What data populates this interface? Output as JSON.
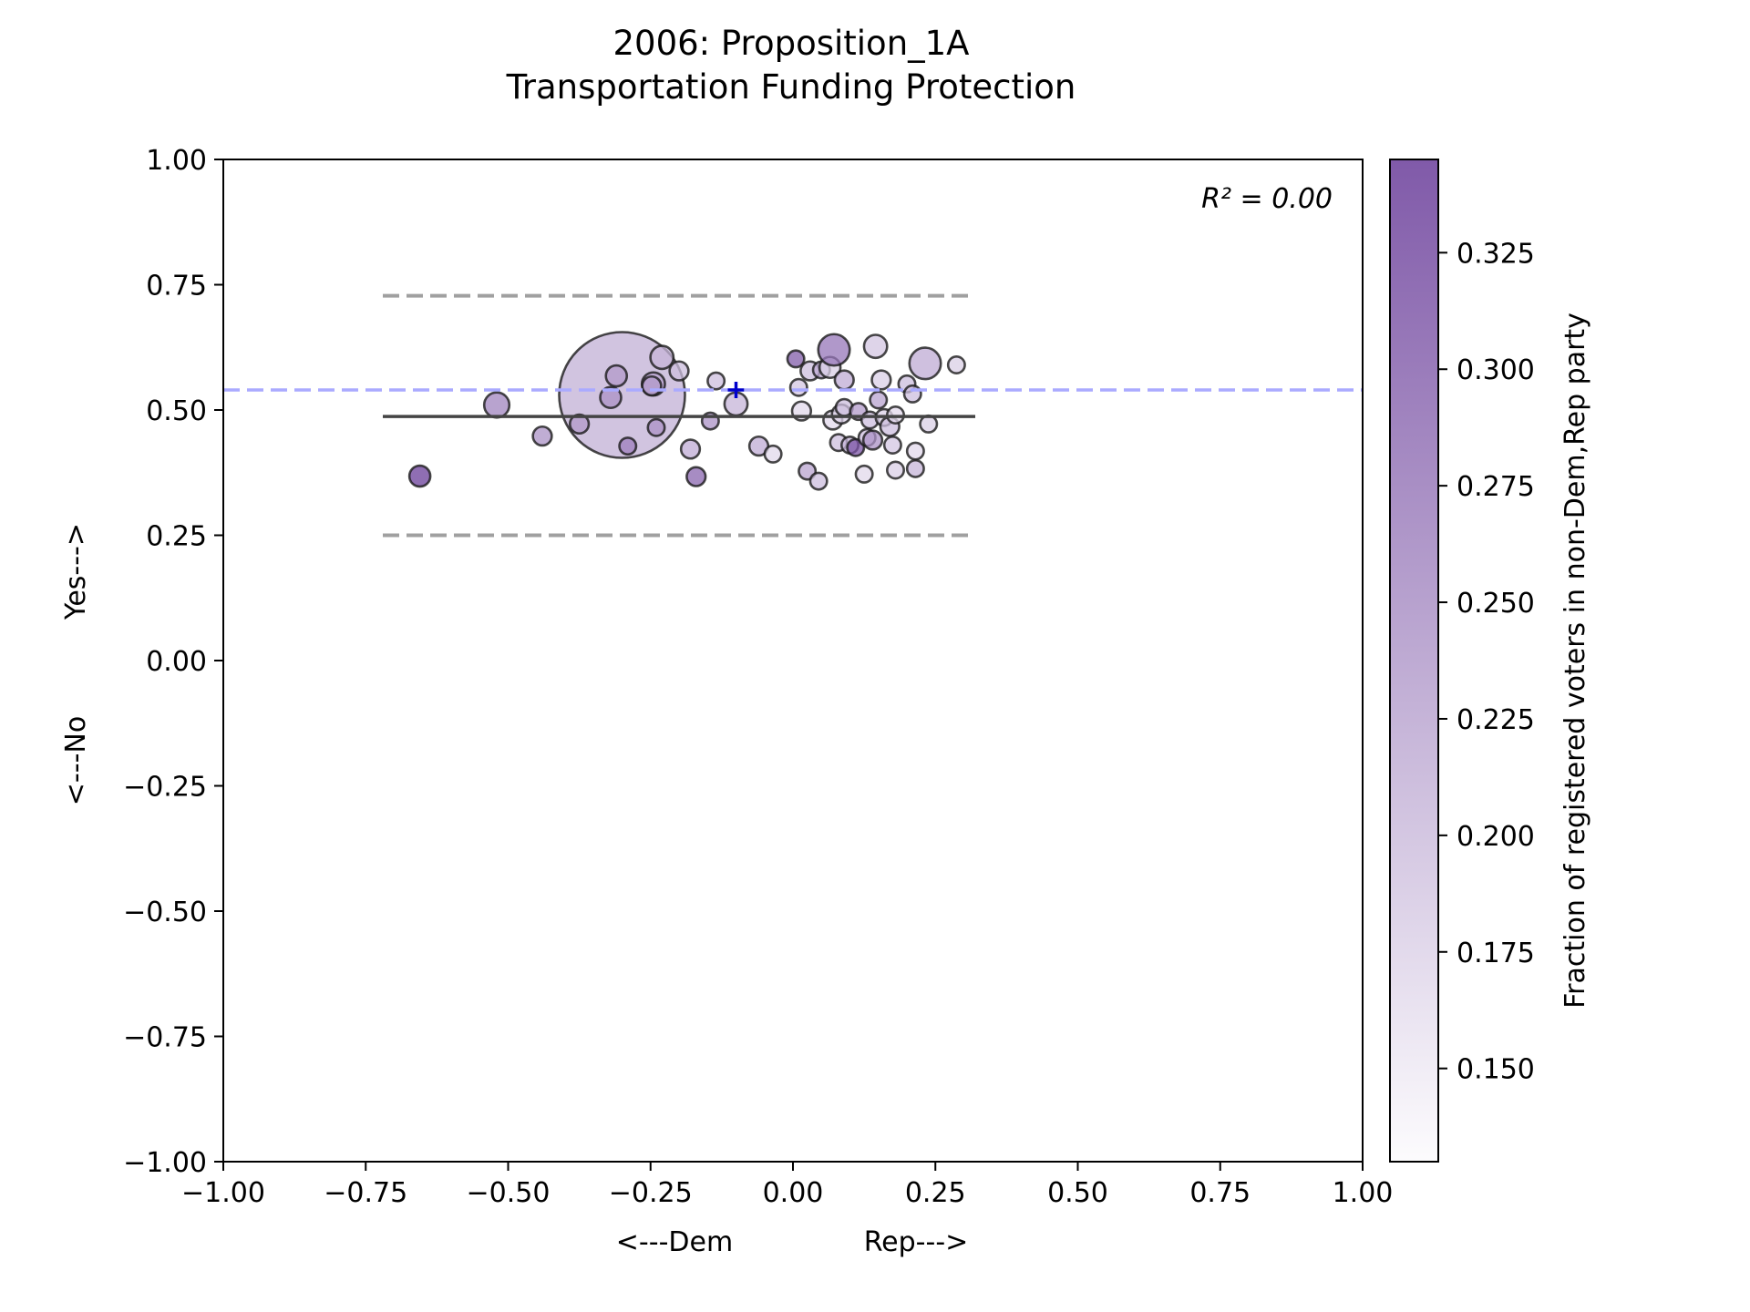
{
  "chart_data": {
    "type": "scatter",
    "title": [
      "2006: Proposition_1A",
      "Transportation Funding Protection"
    ],
    "xlabel_left": "<---Dem",
    "xlabel_right": "Rep--->",
    "ylabel_bottom": "<---No",
    "ylabel_top": "Yes--->",
    "xlim": [
      -1.0,
      1.0
    ],
    "ylim": [
      -1.0,
      1.0
    ],
    "xticks": [
      -1.0,
      -0.75,
      -0.5,
      -0.25,
      0.0,
      0.25,
      0.5,
      0.75,
      1.0
    ],
    "xtick_labels": [
      "−1.00",
      "−0.75",
      "−0.50",
      "−0.25",
      "0.00",
      "0.25",
      "0.50",
      "0.75",
      "1.00"
    ],
    "yticks": [
      1.0,
      0.75,
      0.5,
      0.25,
      0.0,
      -0.25,
      -0.5,
      -0.75,
      -1.0
    ],
    "ytick_labels": [
      "1.00",
      "0.75",
      "0.50",
      "0.25",
      "0.00",
      "−0.25",
      "−0.50",
      "−0.75",
      "−1.00"
    ],
    "grid": false,
    "annotation": {
      "text": "R² = 0.00",
      "position": "top-right"
    },
    "reference_line_y": 0.54,
    "reference_line_color": "#aaaaff",
    "fit_line": {
      "x": [
        -0.72,
        0.32
      ],
      "y": [
        0.487,
        0.487
      ],
      "color": "#444444"
    },
    "band_lines": [
      {
        "x": [
          -0.72,
          0.32
        ],
        "y": [
          0.728,
          0.728
        ]
      },
      {
        "x": [
          -0.72,
          0.32
        ],
        "y": [
          0.25,
          0.25
        ]
      }
    ],
    "band_color": "#a0a0a0",
    "mean_marker": {
      "x": -0.1,
      "y": 0.54,
      "color": "#0000cc"
    },
    "colorbar": {
      "label": "Fraction of registered voters in non-Dem,Rep party",
      "range": [
        0.13,
        0.345
      ],
      "ticks": [
        0.15,
        0.175,
        0.2,
        0.225,
        0.25,
        0.275,
        0.3,
        0.325
      ],
      "tick_labels": [
        "0.150",
        "0.175",
        "0.200",
        "0.225",
        "0.250",
        "0.275",
        "0.300",
        "0.325"
      ],
      "color_low": "#fcfbfd",
      "color_high": "#6a3d9a"
    },
    "points": [
      {
        "x": -0.3,
        "y": 0.53,
        "c": 0.215,
        "s": 60
      },
      {
        "x": -0.655,
        "y": 0.368,
        "c": 0.345,
        "s": 10
      },
      {
        "x": -0.52,
        "y": 0.51,
        "c": 0.265,
        "s": 12
      },
      {
        "x": -0.44,
        "y": 0.448,
        "c": 0.25,
        "s": 9
      },
      {
        "x": -0.375,
        "y": 0.472,
        "c": 0.24,
        "s": 9
      },
      {
        "x": -0.32,
        "y": 0.525,
        "c": 0.25,
        "s": 10
      },
      {
        "x": -0.31,
        "y": 0.568,
        "c": 0.24,
        "s": 10
      },
      {
        "x": -0.29,
        "y": 0.428,
        "c": 0.27,
        "s": 8
      },
      {
        "x": -0.245,
        "y": 0.552,
        "c": 0.23,
        "s": 11
      },
      {
        "x": -0.248,
        "y": 0.548,
        "c": 0.24,
        "s": 9
      },
      {
        "x": -0.24,
        "y": 0.465,
        "c": 0.25,
        "s": 8
      },
      {
        "x": -0.23,
        "y": 0.605,
        "c": 0.21,
        "s": 11
      },
      {
        "x": -0.2,
        "y": 0.578,
        "c": 0.2,
        "s": 9
      },
      {
        "x": -0.18,
        "y": 0.422,
        "c": 0.22,
        "s": 9
      },
      {
        "x": -0.17,
        "y": 0.367,
        "c": 0.3,
        "s": 9
      },
      {
        "x": -0.145,
        "y": 0.478,
        "c": 0.25,
        "s": 8
      },
      {
        "x": -0.135,
        "y": 0.558,
        "c": 0.2,
        "s": 8
      },
      {
        "x": -0.1,
        "y": 0.512,
        "c": 0.21,
        "s": 11
      },
      {
        "x": -0.06,
        "y": 0.428,
        "c": 0.22,
        "s": 9
      },
      {
        "x": -0.035,
        "y": 0.412,
        "c": 0.17,
        "s": 8
      },
      {
        "x": 0.005,
        "y": 0.602,
        "c": 0.31,
        "s": 8
      },
      {
        "x": 0.01,
        "y": 0.545,
        "c": 0.19,
        "s": 8
      },
      {
        "x": 0.015,
        "y": 0.498,
        "c": 0.17,
        "s": 9
      },
      {
        "x": 0.025,
        "y": 0.378,
        "c": 0.23,
        "s": 8
      },
      {
        "x": 0.03,
        "y": 0.578,
        "c": 0.2,
        "s": 9
      },
      {
        "x": 0.045,
        "y": 0.358,
        "c": 0.2,
        "s": 8
      },
      {
        "x": 0.05,
        "y": 0.58,
        "c": 0.22,
        "s": 8
      },
      {
        "x": 0.065,
        "y": 0.585,
        "c": 0.18,
        "s": 10
      },
      {
        "x": 0.072,
        "y": 0.62,
        "c": 0.28,
        "s": 15
      },
      {
        "x": 0.07,
        "y": 0.48,
        "c": 0.17,
        "s": 9
      },
      {
        "x": 0.08,
        "y": 0.435,
        "c": 0.2,
        "s": 8
      },
      {
        "x": 0.085,
        "y": 0.492,
        "c": 0.18,
        "s": 9
      },
      {
        "x": 0.09,
        "y": 0.56,
        "c": 0.22,
        "s": 9
      },
      {
        "x": 0.09,
        "y": 0.505,
        "c": 0.2,
        "s": 8
      },
      {
        "x": 0.1,
        "y": 0.43,
        "c": 0.21,
        "s": 8
      },
      {
        "x": 0.11,
        "y": 0.425,
        "c": 0.32,
        "s": 8
      },
      {
        "x": 0.115,
        "y": 0.497,
        "c": 0.24,
        "s": 8
      },
      {
        "x": 0.125,
        "y": 0.372,
        "c": 0.17,
        "s": 8
      },
      {
        "x": 0.13,
        "y": 0.445,
        "c": 0.2,
        "s": 8
      },
      {
        "x": 0.135,
        "y": 0.48,
        "c": 0.2,
        "s": 8
      },
      {
        "x": 0.14,
        "y": 0.44,
        "c": 0.25,
        "s": 9
      },
      {
        "x": 0.145,
        "y": 0.627,
        "c": 0.19,
        "s": 11
      },
      {
        "x": 0.15,
        "y": 0.52,
        "c": 0.23,
        "s": 8
      },
      {
        "x": 0.155,
        "y": 0.56,
        "c": 0.18,
        "s": 9
      },
      {
        "x": 0.16,
        "y": 0.485,
        "c": 0.18,
        "s": 8
      },
      {
        "x": 0.17,
        "y": 0.467,
        "c": 0.2,
        "s": 9
      },
      {
        "x": 0.175,
        "y": 0.43,
        "c": 0.19,
        "s": 8
      },
      {
        "x": 0.18,
        "y": 0.38,
        "c": 0.18,
        "s": 8
      },
      {
        "x": 0.18,
        "y": 0.49,
        "c": 0.17,
        "s": 8
      },
      {
        "x": 0.2,
        "y": 0.552,
        "c": 0.2,
        "s": 8
      },
      {
        "x": 0.21,
        "y": 0.532,
        "c": 0.2,
        "s": 8
      },
      {
        "x": 0.215,
        "y": 0.383,
        "c": 0.21,
        "s": 8
      },
      {
        "x": 0.215,
        "y": 0.418,
        "c": 0.17,
        "s": 8
      },
      {
        "x": 0.232,
        "y": 0.593,
        "c": 0.22,
        "s": 15
      },
      {
        "x": 0.238,
        "y": 0.472,
        "c": 0.18,
        "s": 8
      },
      {
        "x": 0.287,
        "y": 0.59,
        "c": 0.18,
        "s": 8
      }
    ]
  }
}
